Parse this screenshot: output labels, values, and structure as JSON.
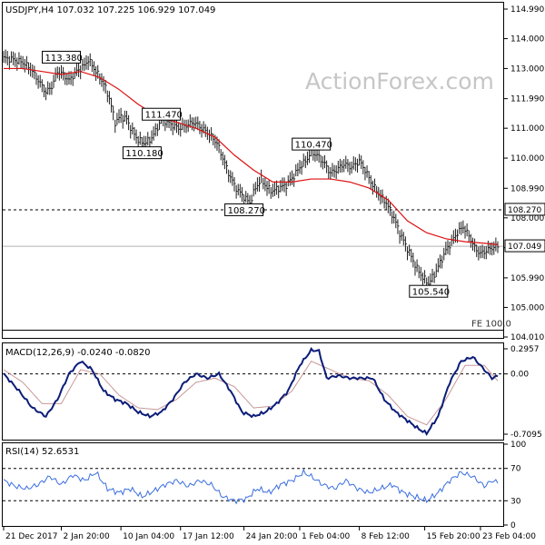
{
  "header": {
    "symbol_info": "USDJPY,H4  107.032 107.225 106.929 107.049",
    "watermark": "ActionForex.com"
  },
  "chart_data": [
    {
      "type": "line",
      "title": "USDJPY,H4  107.032 107.225 106.929 107.049",
      "y_ticks": [
        104.01,
        105.0,
        105.99,
        107.0,
        108.0,
        108.99,
        110.0,
        111.0,
        111.99,
        113.0,
        114.0,
        114.99
      ],
      "ylim": [
        104.01,
        114.99
      ],
      "last_price": 107.049,
      "last_price_label": "107.049",
      "fe_label": "FE 100.0",
      "fe_level": 104.24,
      "levels": [
        {
          "name": "support",
          "value": 108.27,
          "label": "108.270",
          "style": "dashed"
        }
      ],
      "annotations": [
        {
          "text": "113.380",
          "x": 30,
          "y": 113.38
        },
        {
          "text": "111.470",
          "x": 82,
          "y": 111.47
        },
        {
          "text": "110.180",
          "x": 72,
          "y": 110.18
        },
        {
          "text": "110.470",
          "x": 160,
          "y": 110.47
        },
        {
          "text": "108.270",
          "x": 125,
          "y": 108.27
        },
        {
          "text": "105.540",
          "x": 221,
          "y": 105.54
        }
      ],
      "x_labels": [
        "21 Dec 2017",
        "2 Jan 20:00",
        "10 Jan 04:00",
        "17 Jan 12:00",
        "24 Jan 20:00",
        "1 Feb 04:00",
        "8 Feb 12:00",
        "15 Feb 20:00",
        "23 Feb 04:00"
      ],
      "x_label_idx": [
        0,
        30,
        61,
        92,
        125,
        154,
        185,
        219,
        248
      ],
      "series": [
        {
          "name": "price",
          "kind": "ohlc_bar",
          "color": "#1f1f1f",
          "values": [
            [
              0,
              113.35
            ],
            [
              5,
              113.3
            ],
            [
              10,
              113.2
            ],
            [
              14,
              113.0
            ],
            [
              18,
              112.6
            ],
            [
              22,
              112.2
            ],
            [
              25,
              112.4
            ],
            [
              28,
              112.9
            ],
            [
              31,
              112.8
            ],
            [
              34,
              112.6
            ],
            [
              38,
              112.9
            ],
            [
              42,
              113.1
            ],
            [
              44,
              113.3
            ],
            [
              48,
              112.9
            ],
            [
              52,
              112.5
            ],
            [
              55,
              112.0
            ],
            [
              58,
              111.2
            ],
            [
              61,
              111.4
            ],
            [
              64,
              111.3
            ],
            [
              67,
              110.9
            ],
            [
              70,
              110.6
            ],
            [
              73,
              110.5
            ],
            [
              76,
              110.6
            ],
            [
              79,
              110.9
            ],
            [
              82,
              111.3
            ],
            [
              85,
              111.2
            ],
            [
              88,
              111.1
            ],
            [
              91,
              111.0
            ],
            [
              95,
              111.1
            ],
            [
              99,
              111.2
            ],
            [
              103,
              111.0
            ],
            [
              107,
              110.8
            ],
            [
              111,
              110.5
            ],
            [
              114,
              110.0
            ],
            [
              117,
              109.5
            ],
            [
              120,
              109.1
            ],
            [
              122,
              108.9
            ],
            [
              125,
              108.7
            ],
            [
              128,
              108.5
            ],
            [
              131,
              109.0
            ],
            [
              134,
              109.3
            ],
            [
              137,
              109.0
            ],
            [
              140,
              108.9
            ],
            [
              143,
              109.0
            ],
            [
              147,
              109.1
            ],
            [
              151,
              109.4
            ],
            [
              154,
              109.7
            ],
            [
              157,
              109.9
            ],
            [
              160,
              110.2
            ],
            [
              163,
              110.1
            ],
            [
              167,
              109.8
            ],
            [
              170,
              109.5
            ],
            [
              173,
              109.6
            ],
            [
              177,
              109.8
            ],
            [
              181,
              109.7
            ],
            [
              185,
              109.9
            ],
            [
              188,
              109.6
            ],
            [
              191,
              109.2
            ],
            [
              195,
              108.8
            ],
            [
              199,
              108.5
            ],
            [
              203,
              108.0
            ],
            [
              206,
              107.5
            ],
            [
              209,
              107.1
            ],
            [
              212,
              106.7
            ],
            [
              215,
              106.3
            ],
            [
              218,
              106.0
            ],
            [
              221,
              105.8
            ],
            [
              224,
              106.1
            ],
            [
              227,
              106.5
            ],
            [
              230,
              106.9
            ],
            [
              233,
              107.2
            ],
            [
              236,
              107.5
            ],
            [
              239,
              107.7
            ],
            [
              242,
              107.4
            ],
            [
              245,
              107.0
            ],
            [
              248,
              106.8
            ],
            [
              251,
              106.9
            ],
            [
              254,
              107.0
            ],
            [
              257,
              107.049
            ]
          ]
        },
        {
          "name": "moving-average",
          "color": "#dd1111",
          "values": [
            [
              0,
              113.0
            ],
            [
              10,
              113.0
            ],
            [
              20,
              112.9
            ],
            [
              30,
              112.8
            ],
            [
              40,
              112.9
            ],
            [
              50,
              112.7
            ],
            [
              60,
              112.3
            ],
            [
              70,
              111.8
            ],
            [
              80,
              111.4
            ],
            [
              90,
              111.2
            ],
            [
              100,
              111.0
            ],
            [
              110,
              110.7
            ],
            [
              120,
              110.1
            ],
            [
              130,
              109.6
            ],
            [
              140,
              109.2
            ],
            [
              150,
              109.2
            ],
            [
              160,
              109.3
            ],
            [
              170,
              109.3
            ],
            [
              180,
              109.2
            ],
            [
              190,
              109.0
            ],
            [
              200,
              108.6
            ],
            [
              210,
              107.9
            ],
            [
              220,
              107.5
            ],
            [
              230,
              107.3
            ],
            [
              240,
              107.2
            ],
            [
              250,
              107.15
            ],
            [
              257,
              107.1
            ]
          ]
        }
      ]
    },
    {
      "type": "line",
      "title": "MACD(12,26,9) -0.0240 -0.0820",
      "y_ticks": [
        0.2957,
        0.0,
        -0.7095
      ],
      "ylim": [
        -0.7095,
        0.2957
      ],
      "series": [
        {
          "name": "macd-main",
          "color": "#0c1d78",
          "values": [
            [
              0,
              0.0
            ],
            [
              8,
              -0.2
            ],
            [
              15,
              -0.4
            ],
            [
              22,
              -0.5
            ],
            [
              28,
              -0.3
            ],
            [
              34,
              0.0
            ],
            [
              40,
              0.15
            ],
            [
              46,
              0.05
            ],
            [
              52,
              -0.2
            ],
            [
              58,
              -0.3
            ],
            [
              64,
              -0.35
            ],
            [
              70,
              -0.45
            ],
            [
              76,
              -0.5
            ],
            [
              82,
              -0.45
            ],
            [
              88,
              -0.3
            ],
            [
              94,
              -0.1
            ],
            [
              100,
              0.0
            ],
            [
              106,
              -0.05
            ],
            [
              112,
              0.0
            ],
            [
              118,
              -0.2
            ],
            [
              124,
              -0.45
            ],
            [
              130,
              -0.5
            ],
            [
              136,
              -0.45
            ],
            [
              142,
              -0.35
            ],
            [
              148,
              -0.2
            ],
            [
              154,
              0.1
            ],
            [
              160,
              0.28
            ],
            [
              164,
              0.27
            ],
            [
              168,
              -0.05
            ],
            [
              174,
              -0.02
            ],
            [
              180,
              -0.05
            ],
            [
              186,
              -0.05
            ],
            [
              192,
              -0.05
            ],
            [
              198,
              -0.3
            ],
            [
              204,
              -0.45
            ],
            [
              210,
              -0.55
            ],
            [
              216,
              -0.65
            ],
            [
              220,
              -0.7
            ],
            [
              226,
              -0.5
            ],
            [
              232,
              -0.1
            ],
            [
              238,
              0.15
            ],
            [
              244,
              0.2
            ],
            [
              250,
              0.05
            ],
            [
              254,
              -0.05
            ],
            [
              257,
              -0.024
            ]
          ]
        },
        {
          "name": "macd-signal",
          "color": "#c89898",
          "values": [
            [
              0,
              0.05
            ],
            [
              10,
              -0.1
            ],
            [
              20,
              -0.35
            ],
            [
              30,
              -0.35
            ],
            [
              40,
              0.05
            ],
            [
              50,
              0.0
            ],
            [
              60,
              -0.25
            ],
            [
              70,
              -0.4
            ],
            [
              80,
              -0.42
            ],
            [
              90,
              -0.3
            ],
            [
              100,
              -0.1
            ],
            [
              110,
              -0.05
            ],
            [
              120,
              -0.15
            ],
            [
              130,
              -0.4
            ],
            [
              140,
              -0.38
            ],
            [
              150,
              -0.2
            ],
            [
              160,
              0.15
            ],
            [
              170,
              0.05
            ],
            [
              180,
              -0.05
            ],
            [
              190,
              -0.08
            ],
            [
              200,
              -0.25
            ],
            [
              210,
              -0.5
            ],
            [
              220,
              -0.6
            ],
            [
              230,
              -0.3
            ],
            [
              240,
              0.1
            ],
            [
              250,
              0.1
            ],
            [
              257,
              -0.082
            ]
          ]
        }
      ]
    },
    {
      "type": "line",
      "title": "RSI(14) 52.6531",
      "y_ticks": [
        100,
        70,
        30,
        0
      ],
      "ylim": [
        0,
        100
      ],
      "series": [
        {
          "name": "rsi",
          "color": "#3a6ee0",
          "values": [
            [
              0,
              55
            ],
            [
              6,
              48
            ],
            [
              12,
              45
            ],
            [
              18,
              50
            ],
            [
              24,
              60
            ],
            [
              30,
              50
            ],
            [
              36,
              62
            ],
            [
              42,
              55
            ],
            [
              48,
              65
            ],
            [
              54,
              45
            ],
            [
              60,
              40
            ],
            [
              66,
              45
            ],
            [
              72,
              35
            ],
            [
              78,
              42
            ],
            [
              84,
              50
            ],
            [
              90,
              55
            ],
            [
              96,
              48
            ],
            [
              102,
              55
            ],
            [
              108,
              50
            ],
            [
              114,
              35
            ],
            [
              120,
              30
            ],
            [
              126,
              32
            ],
            [
              132,
              45
            ],
            [
              138,
              40
            ],
            [
              144,
              50
            ],
            [
              150,
              55
            ],
            [
              156,
              65
            ],
            [
              160,
              60
            ],
            [
              166,
              50
            ],
            [
              172,
              45
            ],
            [
              178,
              55
            ],
            [
              184,
              45
            ],
            [
              190,
              40
            ],
            [
              196,
              45
            ],
            [
              202,
              50
            ],
            [
              208,
              40
            ],
            [
              214,
              35
            ],
            [
              220,
              30
            ],
            [
              226,
              40
            ],
            [
              232,
              55
            ],
            [
              238,
              65
            ],
            [
              244,
              60
            ],
            [
              250,
              48
            ],
            [
              254,
              55
            ],
            [
              257,
              52.65
            ]
          ]
        }
      ]
    }
  ]
}
